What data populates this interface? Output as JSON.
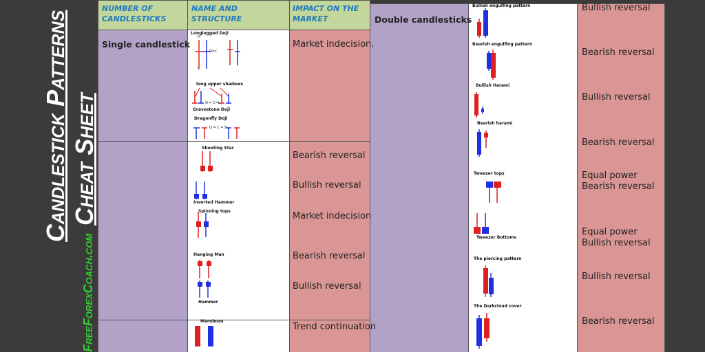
{
  "title_lines": [
    "Candlestick Patterns",
    "Cheat Sheet"
  ],
  "website": "FreeForexCoach.com",
  "headers": [
    "NUMBER OF CANDLESTICKS",
    "NAME AND STRUCTURE",
    "IMPACT ON THE MARKET"
  ],
  "single": {
    "label": "Single candlestick",
    "patterns": [
      "Longlegged Doji",
      "long upper shadows",
      "Gravestone Doji",
      "Dragonfly Doji",
      "Shooting Star",
      "Inverted Hammer",
      "Spinning tops",
      "Hanging Man",
      "Hammer",
      "Marubozu"
    ],
    "doji_labels": [
      "H",
      "L",
      "O=C",
      "O = C=L",
      "O = C = H"
    ],
    "impacts": [
      "Market indecision.",
      "Bearish reversal",
      "Bullish reversal",
      "Market indecision",
      "Bearish reversal",
      "Bullish reversal",
      "Trend continuation"
    ]
  },
  "double": {
    "label": "Double candlesticks",
    "patterns": [
      "Bullish engulfing pattern",
      "Bearish engulfing pattern",
      "Bullish Harami",
      "Bearish harami",
      "Tweezer tops",
      "Tweezer Bottoms",
      "The piercing pattern",
      "The Darkcloud cover"
    ],
    "impacts": [
      "Bullish reversal",
      "Bearish reversal",
      "Bullish reversal",
      "Bearish reversal",
      "Equal power",
      "Bearish reversal",
      "Equal power",
      "Bullish reversal",
      "Bullish reversal",
      "Bearish reversal"
    ]
  }
}
